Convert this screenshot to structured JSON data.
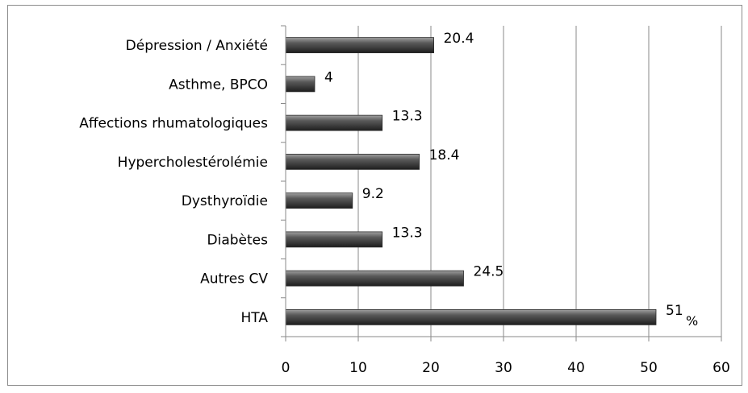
{
  "chart_data": {
    "type": "bar",
    "orientation": "horizontal",
    "categories": [
      "Dépression / Anxiété",
      "Asthme, BPCO",
      "Affections rhumatologiques",
      "Hypercholestérolémie",
      "Dysthyroïdie",
      "Diabètes",
      "Autres CV",
      "HTA"
    ],
    "values": [
      20.4,
      4,
      13.3,
      18.4,
      9.2,
      13.3,
      24.5,
      51
    ],
    "value_labels": [
      "20.4",
      "4",
      "13.3",
      "18.4",
      "9.2",
      "13.3",
      "24.5",
      "51"
    ],
    "unit_label": "%",
    "xlim": [
      0,
      60
    ],
    "x_ticks": [
      "0",
      "10",
      "20",
      "30",
      "40",
      "50",
      "60"
    ],
    "grid": "vertical",
    "bar_color": "#4a4a4a",
    "title": "",
    "xlabel": "",
    "ylabel": ""
  }
}
